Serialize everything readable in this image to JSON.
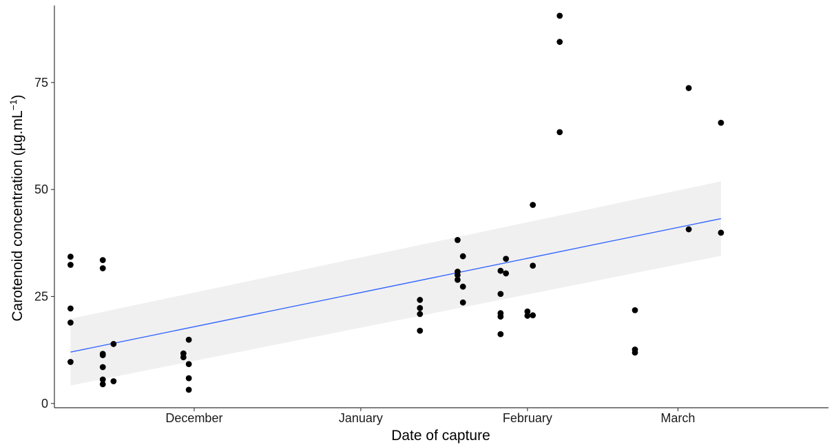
{
  "chart_data": {
    "type": "scatter",
    "title": "",
    "xlabel": "Date of capture",
    "ylabel_main": "Carotenoid concentration (µg.mL",
    "ylabel_sup": "−1",
    "ylabel_close": ")",
    "x_is_date": true,
    "year_note": "not shown",
    "xlim": [
      "2021-11-05",
      "2022-03-29"
    ],
    "ylim": [
      -1,
      93
    ],
    "x_ticks": [
      {
        "date": "2021-12-01",
        "label": "December"
      },
      {
        "date": "2022-01-01",
        "label": "January"
      },
      {
        "date": "2022-02-01",
        "label": "February"
      },
      {
        "date": "2022-03-01",
        "label": "March"
      }
    ],
    "y_ticks": [
      0,
      25,
      50,
      75
    ],
    "grid": false,
    "legend": "none",
    "point_color": "#000000",
    "series": [
      {
        "points": [
          [
            "2021-11-08",
            34.3
          ],
          [
            "2021-11-08",
            32.4
          ],
          [
            "2021-11-08",
            22.2
          ],
          [
            "2021-11-08",
            18.9
          ],
          [
            "2021-11-08",
            9.7
          ],
          [
            "2021-11-14",
            33.5
          ],
          [
            "2021-11-14",
            31.6
          ],
          [
            "2021-11-14",
            11.6
          ],
          [
            "2021-11-14",
            11.3
          ],
          [
            "2021-11-14",
            8.5
          ],
          [
            "2021-11-14",
            5.6
          ],
          [
            "2021-11-14",
            4.5
          ],
          [
            "2021-11-16",
            13.9
          ],
          [
            "2021-11-16",
            5.2
          ],
          [
            "2021-11-29",
            11.7
          ],
          [
            "2021-11-29",
            10.8
          ],
          [
            "2021-11-30",
            14.9
          ],
          [
            "2021-11-30",
            9.2
          ],
          [
            "2021-11-30",
            5.9
          ],
          [
            "2021-11-30",
            3.2
          ],
          [
            "2022-01-12",
            24.2
          ],
          [
            "2022-01-12",
            22.3
          ],
          [
            "2022-01-12",
            20.9
          ],
          [
            "2022-01-12",
            17.0
          ],
          [
            "2022-01-19",
            38.2
          ],
          [
            "2022-01-19",
            30.8
          ],
          [
            "2022-01-19",
            30.0
          ],
          [
            "2022-01-19",
            28.9
          ],
          [
            "2022-01-20",
            34.4
          ],
          [
            "2022-01-20",
            27.3
          ],
          [
            "2022-01-20",
            23.6
          ],
          [
            "2022-01-27",
            31.0
          ],
          [
            "2022-01-27",
            25.6
          ],
          [
            "2022-01-27",
            21.1
          ],
          [
            "2022-01-27",
            20.3
          ],
          [
            "2022-01-27",
            16.2
          ],
          [
            "2022-01-28",
            33.8
          ],
          [
            "2022-01-28",
            30.4
          ],
          [
            "2022-02-01",
            21.5
          ],
          [
            "2022-02-01",
            20.5
          ],
          [
            "2022-02-02",
            46.4
          ],
          [
            "2022-02-02",
            32.2
          ],
          [
            "2022-02-02",
            20.6
          ],
          [
            "2022-02-07",
            90.6
          ],
          [
            "2022-02-07",
            84.5
          ],
          [
            "2022-02-07",
            63.4
          ],
          [
            "2022-02-21",
            21.8
          ],
          [
            "2022-02-21",
            12.6
          ],
          [
            "2022-02-21",
            11.9
          ],
          [
            "2022-03-03",
            73.7
          ],
          [
            "2022-03-03",
            40.7
          ],
          [
            "2022-03-09",
            65.6
          ],
          [
            "2022-03-09",
            39.9
          ]
        ]
      }
    ],
    "trend_line": {
      "method": "linear",
      "color": "#3366FF",
      "band_color": "#EBEBEB",
      "x": [
        "2021-11-08",
        "2022-03-09"
      ],
      "y": [
        12.0,
        43.2
      ],
      "ci_lower": [
        4.2,
        34.5
      ],
      "ci_upper": [
        19.8,
        51.9
      ]
    }
  }
}
